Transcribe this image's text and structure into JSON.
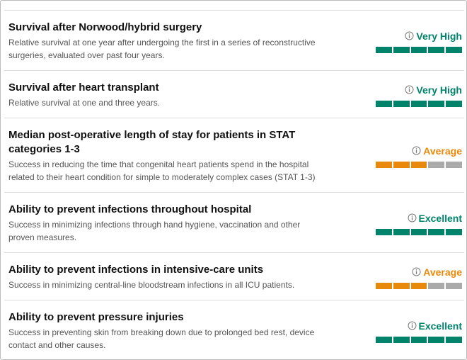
{
  "score_max": 5,
  "items": [
    {
      "title": "Survival after Norwood/hybrid surgery",
      "description": "Relative survival at one year after undergoing the first in a series of reconstructive surgeries, evaluated over past four years.",
      "rating": "Very High",
      "score": 5,
      "color": "#00836b"
    },
    {
      "title": "Survival after heart transplant",
      "description": "Relative survival at one and three years.",
      "rating": "Very High",
      "score": 5,
      "color": "#00836b"
    },
    {
      "title": "Median post-operative length of stay for patients in STAT categories 1-3",
      "description": "Success in reducing the time that congenital heart patients spend in the hospital related to their heart condition for simple to moderately complex cases (STAT 1-3)",
      "rating": "Average",
      "score": 3,
      "color": "#e8890c"
    },
    {
      "title": "Ability to prevent infections throughout hospital",
      "description": "Success in minimizing infections through hand hygiene, vaccination and other proven measures.",
      "rating": "Excellent",
      "score": 5,
      "color": "#00836b"
    },
    {
      "title": "Ability to prevent infections in intensive-care units",
      "description": "Success in minimizing central-line bloodstream infections in all ICU patients.",
      "rating": "Average",
      "score": 3,
      "color": "#e8890c"
    },
    {
      "title": "Ability to prevent pressure injuries",
      "description": "Success in preventing skin from breaking down due to prolonged bed rest, device contact and other causes.",
      "rating": "Excellent",
      "score": 5,
      "color": "#00836b"
    }
  ]
}
